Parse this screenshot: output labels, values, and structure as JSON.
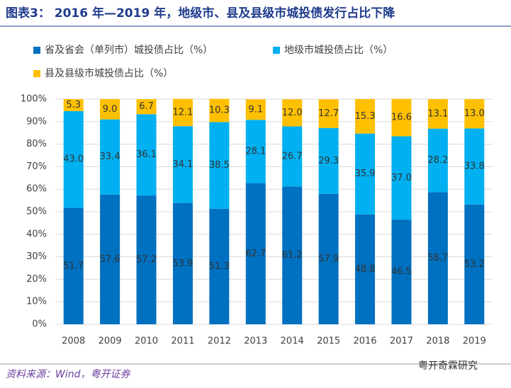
{
  "chart_data": {
    "type": "stacked_bar",
    "title": "图表3： 2016 年—2019 年，地级市、县及县级市城投债发行占比下降",
    "source": "资料来源：Wind，粤开证券",
    "watermark": "粤开奇霖研究",
    "categories": [
      "2008",
      "2009",
      "2010",
      "2011",
      "2012",
      "2013",
      "2014",
      "2015",
      "2016",
      "2017",
      "2018",
      "2019"
    ],
    "series": [
      {
        "name": "省及省会（单列市）城投债占比（%）",
        "color": "#0070c0",
        "values": [
          51.7,
          57.6,
          57.2,
          53.9,
          51.3,
          62.7,
          61.2,
          57.9,
          48.8,
          46.5,
          58.7,
          53.2
        ]
      },
      {
        "name": "地级市城投债占比（%）",
        "color": "#00b0f0",
        "values": [
          43.0,
          33.4,
          36.1,
          34.1,
          38.5,
          28.1,
          26.7,
          29.3,
          35.9,
          37.0,
          28.2,
          33.8
        ],
        "value_labels": [
          "43.0",
          "33.4",
          "36.1",
          "34.1",
          "38.5",
          "28.1",
          "26.7",
          "29.3",
          "35.9",
          "37.0",
          "28.2",
          "33.8"
        ]
      },
      {
        "name": "县及县级市城投债占比（%）",
        "color": "#ffc000",
        "values": [
          5.3,
          9.0,
          6.7,
          12.1,
          10.3,
          9.1,
          12.0,
          12.7,
          15.3,
          16.6,
          13.1,
          13.0
        ],
        "value_labels": [
          "5.3",
          "9.0",
          "6.7",
          "12.1",
          "10.3",
          "9.1",
          "12.0",
          "12.7",
          "15.3",
          "16.6",
          "13.1",
          "13.0"
        ]
      }
    ],
    "ylim": [
      0,
      100
    ],
    "yticks": [
      {
        "value": 0,
        "label": "0%"
      },
      {
        "value": 10,
        "label": "10%"
      },
      {
        "value": 20,
        "label": "20%"
      },
      {
        "value": 30,
        "label": "30%"
      },
      {
        "value": 40,
        "label": "40%"
      },
      {
        "value": 50,
        "label": "50%"
      },
      {
        "value": 60,
        "label": "60%"
      },
      {
        "value": 70,
        "label": "70%"
      },
      {
        "value": 80,
        "label": "80%"
      },
      {
        "value": 90,
        "label": "90%"
      },
      {
        "value": 100,
        "label": "100%"
      }
    ],
    "grid": true
  }
}
